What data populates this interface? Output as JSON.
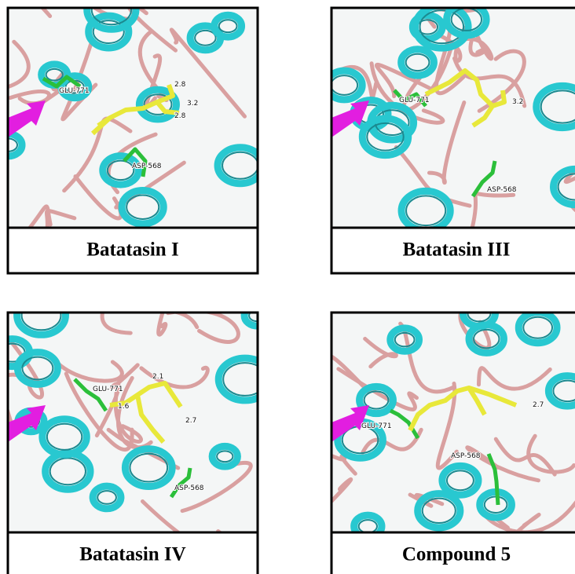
{
  "panels": [
    {
      "title": "Batatasin I",
      "labels": [
        "GLU-771",
        "ASP-568",
        "2.8",
        "3.2",
        "2.8"
      ]
    },
    {
      "title": "Batatasin III",
      "labels": [
        "GLU-771",
        "3.2",
        "ASP-568"
      ]
    },
    {
      "title": "Batatasin IV",
      "labels": [
        "GLU-771",
        "2.1",
        "1.6",
        "2.7",
        "ASP-568"
      ]
    },
    {
      "title": "Compound 5",
      "labels": [
        "GLU-771",
        "ASP-568",
        "2.7"
      ]
    }
  ]
}
